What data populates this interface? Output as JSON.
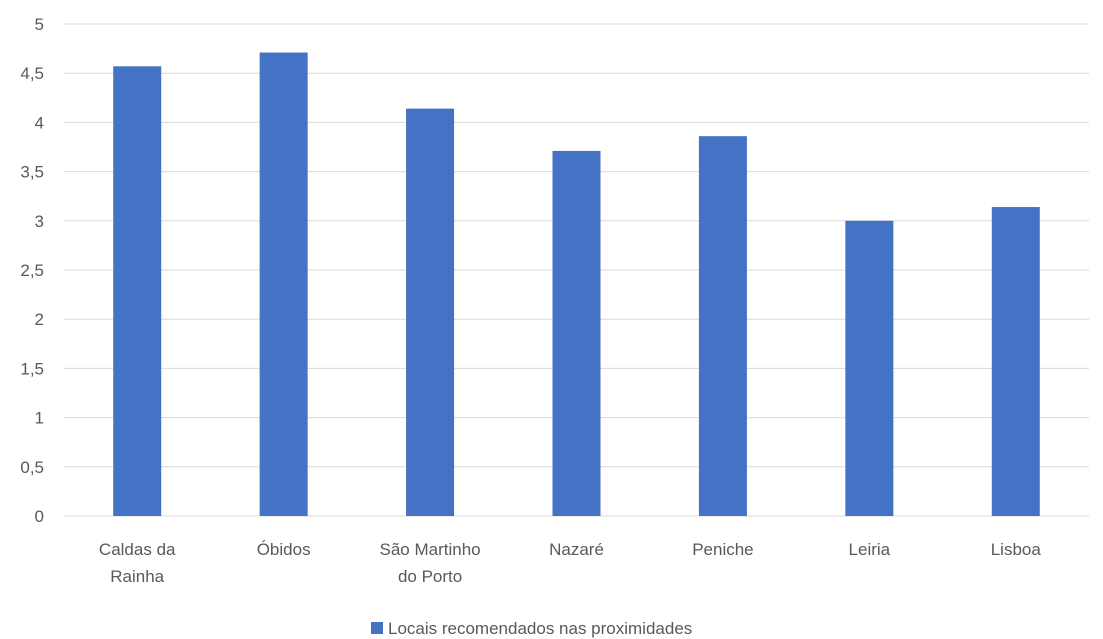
{
  "chart_data": {
    "type": "bar",
    "categories": [
      "Caldas da Rainha",
      "Óbidos",
      "São Martinho do Porto",
      "Nazaré",
      "Peniche",
      "Leiria",
      "Lisboa"
    ],
    "category_lines": [
      [
        "Caldas da",
        "Rainha"
      ],
      [
        "Óbidos"
      ],
      [
        "São Martinho",
        "do Porto"
      ],
      [
        "Nazaré"
      ],
      [
        "Peniche"
      ],
      [
        "Leiria"
      ],
      [
        "Lisboa"
      ]
    ],
    "series": [
      {
        "name": "Locais recomendados nas proximidades",
        "values": [
          4.57,
          4.71,
          4.14,
          3.71,
          3.86,
          3.0,
          3.14
        ],
        "color": "#4472C4"
      }
    ],
    "ylim": [
      0,
      5
    ],
    "yticks": [
      0,
      0.5,
      1,
      1.5,
      2,
      2.5,
      3,
      3.5,
      4,
      4.5,
      5
    ],
    "ytick_labels": [
      "0",
      "0,5",
      "1",
      "1,5",
      "2",
      "2,5",
      "3",
      "3,5",
      "4",
      "4,5",
      "5"
    ],
    "grid": true,
    "gridline_color": "#D9D9D9",
    "legend_position": "bottom",
    "title": "",
    "xlabel": "",
    "ylabel": ""
  }
}
